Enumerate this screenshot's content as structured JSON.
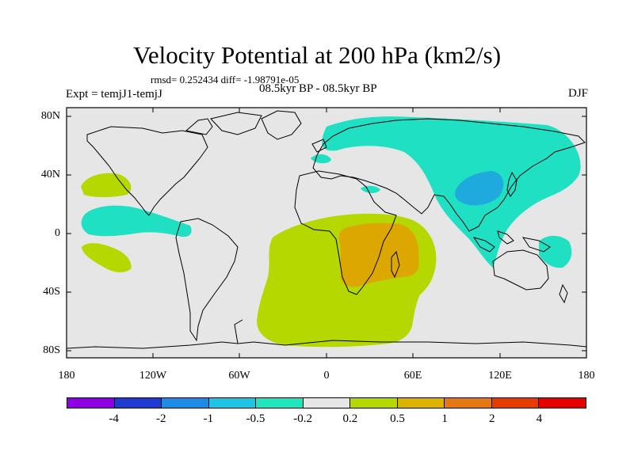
{
  "header": {
    "title": "Velocity Potential at 200 hPa (km2/s)",
    "stats": "rmsd= 0.252434 diff= -1.98791e-05",
    "experiment": "Expt = temjJ1-temjJ",
    "period": "08.5kyr BP - 08.5kyr BP",
    "season": "DJF"
  },
  "axes": {
    "y_ticks": [
      "80N",
      "40N",
      "0",
      "40S",
      "80S"
    ],
    "x_ticks": [
      "180",
      "120W",
      "60W",
      "0",
      "60E",
      "120E",
      "180"
    ]
  },
  "colors": {
    "ocean_background": "#e6e6e6",
    "cyan_region": "#20e0c4",
    "blue_region": "#1eaadc",
    "yellowgreen_region": "#b4d800",
    "orange_region": "#dca800"
  },
  "colorbar": {
    "labels": [
      "-4",
      "-2",
      "-1",
      "-0.5",
      "-0.2",
      "0.2",
      "0.5",
      "1",
      "2",
      "4"
    ],
    "colors": [
      "#8c00e6",
      "#1e3cd2",
      "#1e8ce6",
      "#1ec3e6",
      "#20e6be",
      "#e6e6e6",
      "#b4d800",
      "#dcb400",
      "#e67814",
      "#e63c00",
      "#e60000"
    ]
  }
}
